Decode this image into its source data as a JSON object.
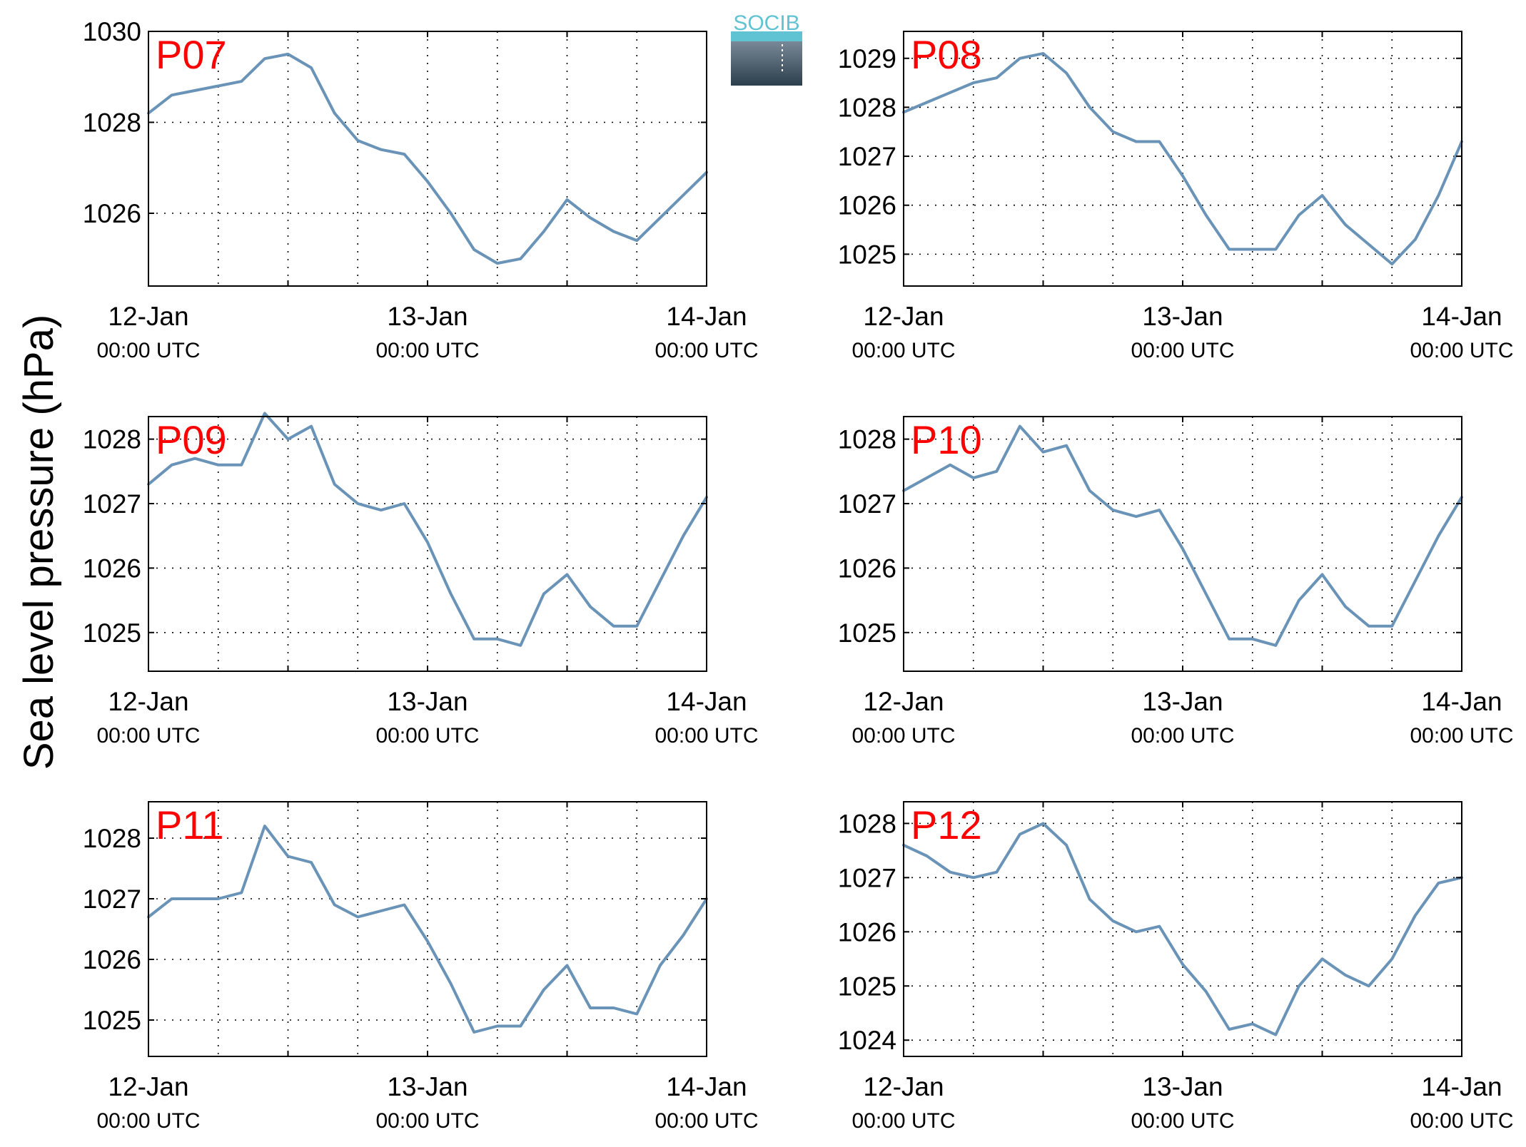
{
  "figure": {
    "ylabel": "Sea level pressure (hPa)",
    "logo_text": "SOCIB",
    "line_color": "#6a93b8",
    "tag_color": "#ff0000",
    "grid": "dotted",
    "x_ticks": [
      {
        "date": "12-Jan",
        "time": "00:00 UTC"
      },
      {
        "date": "13-Jan",
        "time": "00:00 UTC"
      },
      {
        "date": "14-Jan",
        "time": "00:00 UTC"
      }
    ]
  },
  "chart_data": [
    {
      "type": "line",
      "label": "P07",
      "ylim": [
        1024.4,
        1030
      ],
      "yticks": [
        1026,
        1028,
        1030
      ],
      "grid": true,
      "x": [
        "2012-01-12T00:00",
        "2012-01-12T02:00",
        "2012-01-12T04:00",
        "2012-01-12T06:00",
        "2012-01-12T08:00",
        "2012-01-12T10:00",
        "2012-01-12T12:00",
        "2012-01-12T14:00",
        "2012-01-12T16:00",
        "2012-01-12T18:00",
        "2012-01-12T20:00",
        "2012-01-12T22:00",
        "2012-01-13T00:00",
        "2012-01-13T02:00",
        "2012-01-13T04:00",
        "2012-01-13T06:00",
        "2012-01-13T08:00",
        "2012-01-13T10:00",
        "2012-01-13T12:00",
        "2012-01-13T14:00",
        "2012-01-13T16:00",
        "2012-01-13T18:00",
        "2012-01-13T20:00",
        "2012-01-13T22:00",
        "2012-01-14T00:00"
      ],
      "values": [
        1028.2,
        1028.6,
        1028.7,
        1028.8,
        1028.9,
        1029.4,
        1029.5,
        1029.2,
        1028.2,
        1027.6,
        1027.4,
        1027.3,
        1026.7,
        1026.0,
        1025.2,
        1024.9,
        1025.0,
        1025.6,
        1026.3,
        1025.9,
        1025.6,
        1025.4,
        1025.9,
        1026.4,
        1026.9
      ]
    },
    {
      "type": "line",
      "label": "P08",
      "ylim": [
        1024.35,
        1029.55
      ],
      "yticks": [
        1025,
        1026,
        1027,
        1028,
        1029
      ],
      "grid": true,
      "x": [
        "2012-01-12T00:00",
        "2012-01-12T02:00",
        "2012-01-12T04:00",
        "2012-01-12T06:00",
        "2012-01-12T08:00",
        "2012-01-12T10:00",
        "2012-01-12T12:00",
        "2012-01-12T14:00",
        "2012-01-12T16:00",
        "2012-01-12T18:00",
        "2012-01-12T20:00",
        "2012-01-12T22:00",
        "2012-01-13T00:00",
        "2012-01-13T02:00",
        "2012-01-13T04:00",
        "2012-01-13T06:00",
        "2012-01-13T08:00",
        "2012-01-13T10:00",
        "2012-01-13T12:00",
        "2012-01-13T14:00",
        "2012-01-13T16:00",
        "2012-01-13T18:00",
        "2012-01-13T20:00",
        "2012-01-13T22:00",
        "2012-01-14T00:00"
      ],
      "values": [
        1027.9,
        1028.1,
        1028.3,
        1028.5,
        1028.6,
        1029.0,
        1029.1,
        1028.7,
        1028.0,
        1027.5,
        1027.3,
        1027.3,
        1026.6,
        1025.8,
        1025.1,
        1025.1,
        1025.1,
        1025.8,
        1026.2,
        1025.6,
        1025.2,
        1024.8,
        1025.3,
        1026.2,
        1027.3
      ]
    },
    {
      "type": "line",
      "label": "P09",
      "ylim": [
        1024.4,
        1028.35
      ],
      "yticks": [
        1025,
        1026,
        1027,
        1028
      ],
      "grid": true,
      "x": [
        "2012-01-12T00:00",
        "2012-01-12T02:00",
        "2012-01-12T04:00",
        "2012-01-12T06:00",
        "2012-01-12T08:00",
        "2012-01-12T10:00",
        "2012-01-12T12:00",
        "2012-01-12T14:00",
        "2012-01-12T16:00",
        "2012-01-12T18:00",
        "2012-01-12T20:00",
        "2012-01-12T22:00",
        "2012-01-13T00:00",
        "2012-01-13T02:00",
        "2012-01-13T04:00",
        "2012-01-13T06:00",
        "2012-01-13T08:00",
        "2012-01-13T10:00",
        "2012-01-13T12:00",
        "2012-01-13T14:00",
        "2012-01-13T16:00",
        "2012-01-13T18:00",
        "2012-01-13T20:00",
        "2012-01-13T22:00",
        "2012-01-14T00:00"
      ],
      "values": [
        1027.3,
        1027.6,
        1027.7,
        1027.6,
        1027.6,
        1028.4,
        1028.0,
        1028.2,
        1027.3,
        1027.0,
        1026.9,
        1027.0,
        1026.4,
        1025.6,
        1024.9,
        1024.9,
        1024.8,
        1025.6,
        1025.9,
        1025.4,
        1025.1,
        1025.1,
        1025.8,
        1026.5,
        1027.1
      ]
    },
    {
      "type": "line",
      "label": "P10",
      "ylim": [
        1024.4,
        1028.35
      ],
      "yticks": [
        1025,
        1026,
        1027,
        1028
      ],
      "grid": true,
      "x": [
        "2012-01-12T00:00",
        "2012-01-12T02:00",
        "2012-01-12T04:00",
        "2012-01-12T06:00",
        "2012-01-12T08:00",
        "2012-01-12T10:00",
        "2012-01-12T12:00",
        "2012-01-12T14:00",
        "2012-01-12T16:00",
        "2012-01-12T18:00",
        "2012-01-12T20:00",
        "2012-01-12T22:00",
        "2012-01-13T00:00",
        "2012-01-13T02:00",
        "2012-01-13T04:00",
        "2012-01-13T06:00",
        "2012-01-13T08:00",
        "2012-01-13T10:00",
        "2012-01-13T12:00",
        "2012-01-13T14:00",
        "2012-01-13T16:00",
        "2012-01-13T18:00",
        "2012-01-13T20:00",
        "2012-01-13T22:00",
        "2012-01-14T00:00"
      ],
      "values": [
        1027.2,
        1027.4,
        1027.6,
        1027.4,
        1027.5,
        1028.2,
        1027.8,
        1027.9,
        1027.2,
        1026.9,
        1026.8,
        1026.9,
        1026.3,
        1025.6,
        1024.9,
        1024.9,
        1024.8,
        1025.5,
        1025.9,
        1025.4,
        1025.1,
        1025.1,
        1025.8,
        1026.5,
        1027.1
      ]
    },
    {
      "type": "line",
      "label": "P11",
      "ylim": [
        1024.4,
        1028.6
      ],
      "yticks": [
        1025,
        1026,
        1027,
        1028
      ],
      "grid": true,
      "x": [
        "2012-01-12T00:00",
        "2012-01-12T02:00",
        "2012-01-12T04:00",
        "2012-01-12T06:00",
        "2012-01-12T08:00",
        "2012-01-12T10:00",
        "2012-01-12T12:00",
        "2012-01-12T14:00",
        "2012-01-12T16:00",
        "2012-01-12T18:00",
        "2012-01-12T20:00",
        "2012-01-12T22:00",
        "2012-01-13T00:00",
        "2012-01-13T02:00",
        "2012-01-13T04:00",
        "2012-01-13T06:00",
        "2012-01-13T08:00",
        "2012-01-13T10:00",
        "2012-01-13T12:00",
        "2012-01-13T14:00",
        "2012-01-13T16:00",
        "2012-01-13T18:00",
        "2012-01-13T20:00",
        "2012-01-13T22:00",
        "2012-01-14T00:00"
      ],
      "values": [
        1026.7,
        1027.0,
        1027.0,
        1027.0,
        1027.1,
        1028.2,
        1027.7,
        1027.6,
        1026.9,
        1026.7,
        1026.8,
        1026.9,
        1026.3,
        1025.6,
        1024.8,
        1024.9,
        1024.9,
        1025.5,
        1025.9,
        1025.2,
        1025.2,
        1025.1,
        1025.9,
        1026.4,
        1027.0
      ]
    },
    {
      "type": "line",
      "label": "P12",
      "ylim": [
        1023.7,
        1028.4
      ],
      "yticks": [
        1024,
        1025,
        1026,
        1027,
        1028
      ],
      "grid": true,
      "x": [
        "2012-01-12T00:00",
        "2012-01-12T02:00",
        "2012-01-12T04:00",
        "2012-01-12T06:00",
        "2012-01-12T08:00",
        "2012-01-12T10:00",
        "2012-01-12T12:00",
        "2012-01-12T14:00",
        "2012-01-12T16:00",
        "2012-01-12T18:00",
        "2012-01-12T20:00",
        "2012-01-12T22:00",
        "2012-01-13T00:00",
        "2012-01-13T02:00",
        "2012-01-13T04:00",
        "2012-01-13T06:00",
        "2012-01-13T08:00",
        "2012-01-13T10:00",
        "2012-01-13T12:00",
        "2012-01-13T14:00",
        "2012-01-13T16:00",
        "2012-01-13T18:00",
        "2012-01-13T20:00",
        "2012-01-13T22:00",
        "2012-01-14T00:00"
      ],
      "values": [
        1027.6,
        1027.4,
        1027.1,
        1027.0,
        1027.1,
        1027.8,
        1028.0,
        1027.6,
        1026.6,
        1026.2,
        1026.0,
        1026.1,
        1025.4,
        1024.9,
        1024.2,
        1024.3,
        1024.1,
        1025.0,
        1025.5,
        1025.2,
        1025.0,
        1025.5,
        1026.3,
        1026.9,
        1027.0
      ]
    }
  ]
}
